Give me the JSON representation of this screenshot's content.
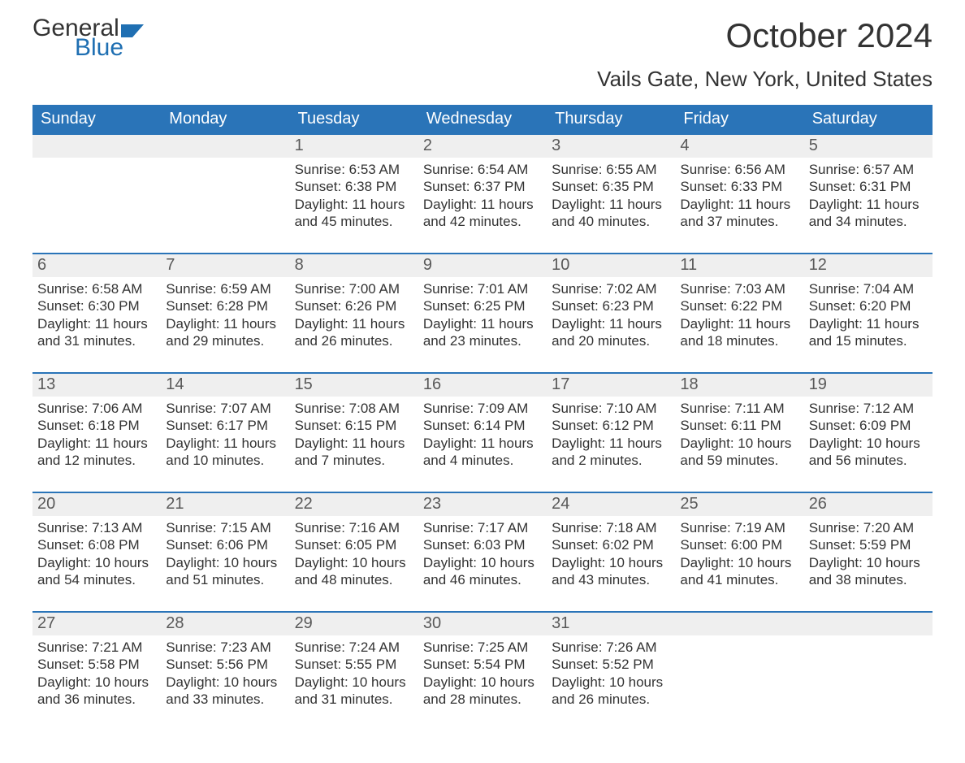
{
  "logo": {
    "word1": "General",
    "word2": "Blue"
  },
  "title": "October 2024",
  "subtitle": "Vails Gate, New York, United States",
  "colors": {
    "header_bg": "#2a74b8",
    "header_text": "#ffffff",
    "daynum_bg": "#efefef",
    "daynum_text": "#595959",
    "body_text": "#333333",
    "logo_blue": "#1f6fb2"
  },
  "weekdays": [
    "Sunday",
    "Monday",
    "Tuesday",
    "Wednesday",
    "Thursday",
    "Friday",
    "Saturday"
  ],
  "weeks": [
    [
      {
        "day": "",
        "sunrise": "",
        "sunset": "",
        "daylight": ""
      },
      {
        "day": "",
        "sunrise": "",
        "sunset": "",
        "daylight": ""
      },
      {
        "day": "1",
        "sunrise": "Sunrise: 6:53 AM",
        "sunset": "Sunset: 6:38 PM",
        "daylight": "Daylight: 11 hours and 45 minutes."
      },
      {
        "day": "2",
        "sunrise": "Sunrise: 6:54 AM",
        "sunset": "Sunset: 6:37 PM",
        "daylight": "Daylight: 11 hours and 42 minutes."
      },
      {
        "day": "3",
        "sunrise": "Sunrise: 6:55 AM",
        "sunset": "Sunset: 6:35 PM",
        "daylight": "Daylight: 11 hours and 40 minutes."
      },
      {
        "day": "4",
        "sunrise": "Sunrise: 6:56 AM",
        "sunset": "Sunset: 6:33 PM",
        "daylight": "Daylight: 11 hours and 37 minutes."
      },
      {
        "day": "5",
        "sunrise": "Sunrise: 6:57 AM",
        "sunset": "Sunset: 6:31 PM",
        "daylight": "Daylight: 11 hours and 34 minutes."
      }
    ],
    [
      {
        "day": "6",
        "sunrise": "Sunrise: 6:58 AM",
        "sunset": "Sunset: 6:30 PM",
        "daylight": "Daylight: 11 hours and 31 minutes."
      },
      {
        "day": "7",
        "sunrise": "Sunrise: 6:59 AM",
        "sunset": "Sunset: 6:28 PM",
        "daylight": "Daylight: 11 hours and 29 minutes."
      },
      {
        "day": "8",
        "sunrise": "Sunrise: 7:00 AM",
        "sunset": "Sunset: 6:26 PM",
        "daylight": "Daylight: 11 hours and 26 minutes."
      },
      {
        "day": "9",
        "sunrise": "Sunrise: 7:01 AM",
        "sunset": "Sunset: 6:25 PM",
        "daylight": "Daylight: 11 hours and 23 minutes."
      },
      {
        "day": "10",
        "sunrise": "Sunrise: 7:02 AM",
        "sunset": "Sunset: 6:23 PM",
        "daylight": "Daylight: 11 hours and 20 minutes."
      },
      {
        "day": "11",
        "sunrise": "Sunrise: 7:03 AM",
        "sunset": "Sunset: 6:22 PM",
        "daylight": "Daylight: 11 hours and 18 minutes."
      },
      {
        "day": "12",
        "sunrise": "Sunrise: 7:04 AM",
        "sunset": "Sunset: 6:20 PM",
        "daylight": "Daylight: 11 hours and 15 minutes."
      }
    ],
    [
      {
        "day": "13",
        "sunrise": "Sunrise: 7:06 AM",
        "sunset": "Sunset: 6:18 PM",
        "daylight": "Daylight: 11 hours and 12 minutes."
      },
      {
        "day": "14",
        "sunrise": "Sunrise: 7:07 AM",
        "sunset": "Sunset: 6:17 PM",
        "daylight": "Daylight: 11 hours and 10 minutes."
      },
      {
        "day": "15",
        "sunrise": "Sunrise: 7:08 AM",
        "sunset": "Sunset: 6:15 PM",
        "daylight": "Daylight: 11 hours and 7 minutes."
      },
      {
        "day": "16",
        "sunrise": "Sunrise: 7:09 AM",
        "sunset": "Sunset: 6:14 PM",
        "daylight": "Daylight: 11 hours and 4 minutes."
      },
      {
        "day": "17",
        "sunrise": "Sunrise: 7:10 AM",
        "sunset": "Sunset: 6:12 PM",
        "daylight": "Daylight: 11 hours and 2 minutes."
      },
      {
        "day": "18",
        "sunrise": "Sunrise: 7:11 AM",
        "sunset": "Sunset: 6:11 PM",
        "daylight": "Daylight: 10 hours and 59 minutes."
      },
      {
        "day": "19",
        "sunrise": "Sunrise: 7:12 AM",
        "sunset": "Sunset: 6:09 PM",
        "daylight": "Daylight: 10 hours and 56 minutes."
      }
    ],
    [
      {
        "day": "20",
        "sunrise": "Sunrise: 7:13 AM",
        "sunset": "Sunset: 6:08 PM",
        "daylight": "Daylight: 10 hours and 54 minutes."
      },
      {
        "day": "21",
        "sunrise": "Sunrise: 7:15 AM",
        "sunset": "Sunset: 6:06 PM",
        "daylight": "Daylight: 10 hours and 51 minutes."
      },
      {
        "day": "22",
        "sunrise": "Sunrise: 7:16 AM",
        "sunset": "Sunset: 6:05 PM",
        "daylight": "Daylight: 10 hours and 48 minutes."
      },
      {
        "day": "23",
        "sunrise": "Sunrise: 7:17 AM",
        "sunset": "Sunset: 6:03 PM",
        "daylight": "Daylight: 10 hours and 46 minutes."
      },
      {
        "day": "24",
        "sunrise": "Sunrise: 7:18 AM",
        "sunset": "Sunset: 6:02 PM",
        "daylight": "Daylight: 10 hours and 43 minutes."
      },
      {
        "day": "25",
        "sunrise": "Sunrise: 7:19 AM",
        "sunset": "Sunset: 6:00 PM",
        "daylight": "Daylight: 10 hours and 41 minutes."
      },
      {
        "day": "26",
        "sunrise": "Sunrise: 7:20 AM",
        "sunset": "Sunset: 5:59 PM",
        "daylight": "Daylight: 10 hours and 38 minutes."
      }
    ],
    [
      {
        "day": "27",
        "sunrise": "Sunrise: 7:21 AM",
        "sunset": "Sunset: 5:58 PM",
        "daylight": "Daylight: 10 hours and 36 minutes."
      },
      {
        "day": "28",
        "sunrise": "Sunrise: 7:23 AM",
        "sunset": "Sunset: 5:56 PM",
        "daylight": "Daylight: 10 hours and 33 minutes."
      },
      {
        "day": "29",
        "sunrise": "Sunrise: 7:24 AM",
        "sunset": "Sunset: 5:55 PM",
        "daylight": "Daylight: 10 hours and 31 minutes."
      },
      {
        "day": "30",
        "sunrise": "Sunrise: 7:25 AM",
        "sunset": "Sunset: 5:54 PM",
        "daylight": "Daylight: 10 hours and 28 minutes."
      },
      {
        "day": "31",
        "sunrise": "Sunrise: 7:26 AM",
        "sunset": "Sunset: 5:52 PM",
        "daylight": "Daylight: 10 hours and 26 minutes."
      },
      {
        "day": "",
        "sunrise": "",
        "sunset": "",
        "daylight": ""
      },
      {
        "day": "",
        "sunrise": "",
        "sunset": "",
        "daylight": ""
      }
    ]
  ]
}
